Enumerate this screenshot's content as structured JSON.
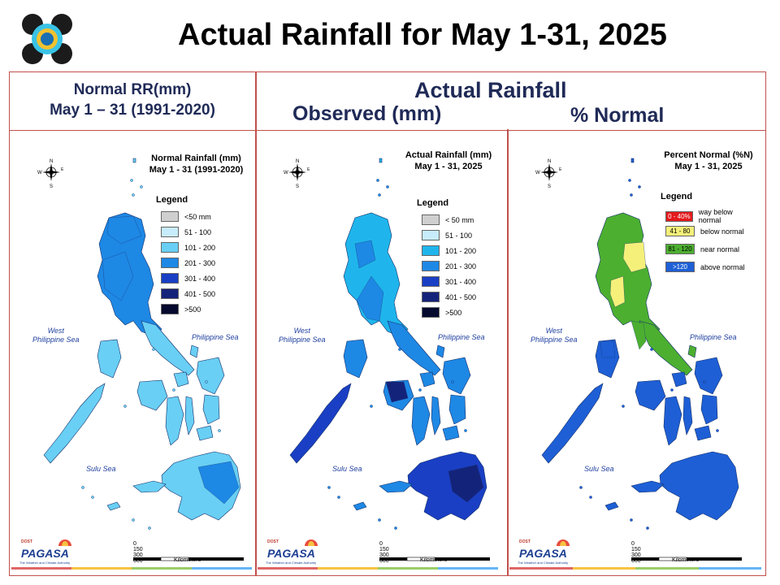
{
  "title": "Actual Rainfall for May 1-31, 2025",
  "headers": {
    "normal_line1": "Normal RR(mm)",
    "normal_line2": "May 1 – 31 (1991-2020)",
    "actual": "Actual Rainfall",
    "observed": "Observed (mm)",
    "percent": "% Normal"
  },
  "panels": [
    {
      "map_title_1": "Normal Rainfall (mm)",
      "map_title_2": "May 1 - 31 (1991-2020)",
      "legend_title": "Legend",
      "legend": [
        {
          "label": "<50 mm",
          "color": "#cfcfcf"
        },
        {
          "label": "51 - 100",
          "color": "#c7ecfb"
        },
        {
          "label": "101 - 200",
          "color": "#69cff4"
        },
        {
          "label": "201 - 300",
          "color": "#1e88e5"
        },
        {
          "label": "301 - 400",
          "color": "#1a3fc4"
        },
        {
          "label": "401 - 500",
          "color": "#14237a"
        },
        {
          "label": ">500",
          "color": "#050a2e"
        }
      ],
      "west_sea": "West\nPhilippine Sea",
      "east_sea": "Philippine Sea",
      "south_sea": "Sulu Sea"
    },
    {
      "map_title_1": "Actual Rainfall (mm)",
      "map_title_2": "May 1 - 31, 2025",
      "legend_title": "Legend",
      "legend": [
        {
          "label": "< 50 mm",
          "color": "#cfcfcf"
        },
        {
          "label": "51 - 100",
          "color": "#c7ecfb"
        },
        {
          "label": "101 - 200",
          "color": "#1fb5ec"
        },
        {
          "label": "201 - 300",
          "color": "#1e88e5"
        },
        {
          "label": "301 - 400",
          "color": "#1a3fc4"
        },
        {
          "label": "401 - 500",
          "color": "#14237a"
        },
        {
          "label": ">500",
          "color": "#050a2e"
        }
      ],
      "west_sea": "West\nPhilippine Sea",
      "east_sea": "Philippine Sea",
      "south_sea": "Sulu Sea"
    },
    {
      "map_title_1": "Percent Normal (%N)",
      "map_title_2": "May 1 - 31, 2025",
      "legend_title": "Legend",
      "legend": [
        {
          "swatch": "0 - 40%",
          "label": "way below normal",
          "color": "#e41a1c",
          "text_color": "#ffffff"
        },
        {
          "swatch": "41 - 80",
          "label": "below normal",
          "color": "#f5f07a",
          "text_color": "#000000"
        },
        {
          "swatch": "81 - 120",
          "label": "near normal",
          "color": "#4caf30",
          "text_color": "#000000"
        },
        {
          "swatch": ">120",
          "label": "above normal",
          "color": "#1e5fd6",
          "text_color": "#ffffff"
        }
      ],
      "west_sea": "West\nPhilippine Sea",
      "east_sea": "Philippine Sea",
      "south_sea": "Sulu Sea"
    }
  ],
  "compass": {
    "n": "N",
    "s": "S",
    "e": "E",
    "w": "W"
  },
  "scale": {
    "ticks": [
      "0",
      "150",
      "300",
      "600"
    ],
    "unit": "Kilometers"
  },
  "branding": {
    "top": "DOST",
    "name": "PAGASA",
    "tagline": "The Weather and Climate Authority"
  },
  "colors": {
    "header_text": "#1f2a57",
    "frame": "#c0504d",
    "stripe": [
      "#e06666",
      "#f6c342",
      "#9ccc65",
      "#64b5f6"
    ]
  }
}
